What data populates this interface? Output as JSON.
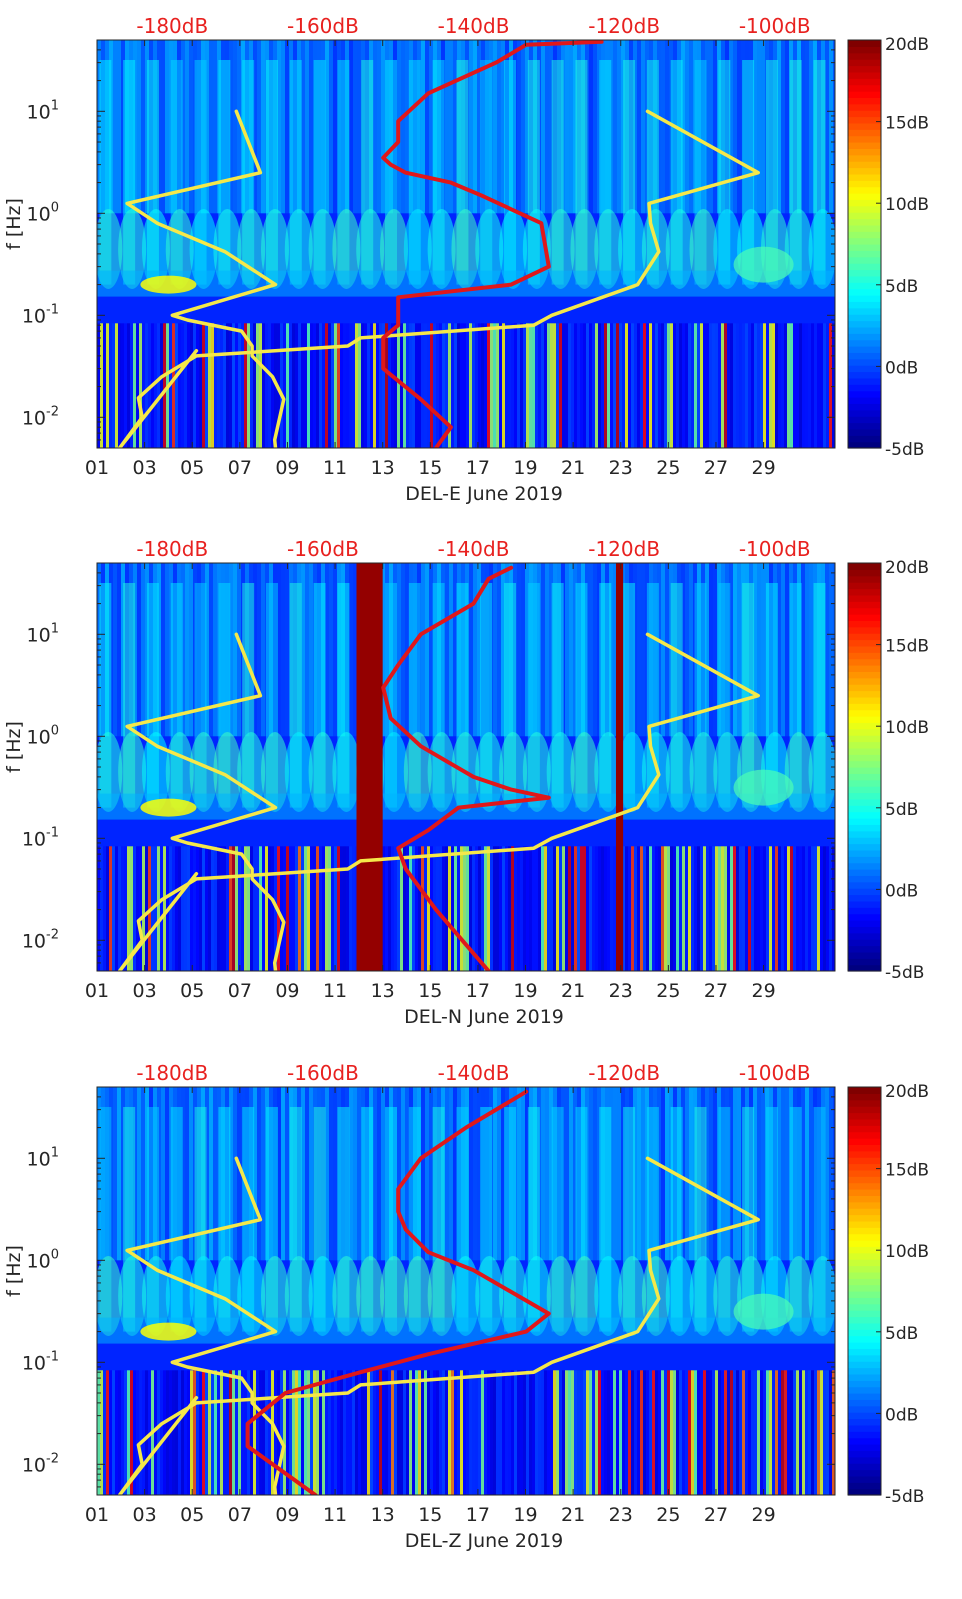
{
  "figure": {
    "colors": {
      "top_axis_text": "#e8211f",
      "text": "#262626",
      "noise_model_line": "#f5e84a",
      "spectrum_line": "#e0171a"
    },
    "colorbar": {
      "ticks": [
        {
          "value": 20,
          "label": "20dB"
        },
        {
          "value": 15,
          "label": "15dB"
        },
        {
          "value": 10,
          "label": "10dB"
        },
        {
          "value": 5,
          "label": "5dB"
        },
        {
          "value": 0,
          "label": "0dB"
        },
        {
          "value": -5,
          "label": "-5dB"
        }
      ],
      "range": [
        -5,
        20
      ],
      "colormap": "jet"
    }
  },
  "chart_data": [
    {
      "type": "heatmap",
      "title": "",
      "xlabel": "DEL-E June 2019",
      "ylabel": "f [Hz]",
      "xlim": [
        1,
        32
      ],
      "ylim": [
        0.005,
        50
      ],
      "yscale": "log",
      "x_ticks": [
        {
          "value": 1,
          "label": "01"
        },
        {
          "value": 3,
          "label": "03"
        },
        {
          "value": 5,
          "label": "05"
        },
        {
          "value": 7,
          "label": "07"
        },
        {
          "value": 9,
          "label": "09"
        },
        {
          "value": 11,
          "label": "11"
        },
        {
          "value": 13,
          "label": "13"
        },
        {
          "value": 15,
          "label": "15"
        },
        {
          "value": 17,
          "label": "17"
        },
        {
          "value": 19,
          "label": "19"
        },
        {
          "value": 21,
          "label": "21"
        },
        {
          "value": 23,
          "label": "23"
        },
        {
          "value": 25,
          "label": "25"
        },
        {
          "value": 27,
          "label": "27"
        },
        {
          "value": 29,
          "label": "29"
        }
      ],
      "y_ticks": [
        {
          "value": 0.01,
          "base": "10",
          "exp": "-2"
        },
        {
          "value": 0.1,
          "base": "10",
          "exp": "-1"
        },
        {
          "value": 1,
          "base": "10",
          "exp": "0"
        },
        {
          "value": 10,
          "base": "10",
          "exp": "1"
        }
      ],
      "top_axis": {
        "xlim": [
          -190,
          -92
        ],
        "ticks": [
          {
            "value": -180,
            "label": "-180dB"
          },
          {
            "value": -160,
            "label": "-160dB"
          },
          {
            "value": -140,
            "label": "-140dB"
          },
          {
            "value": -120,
            "label": "-120dB"
          },
          {
            "value": -100,
            "label": "-100dB"
          }
        ]
      },
      "hot_columns": [],
      "series": [
        {
          "name": "noise model low",
          "color": "#f5e84a",
          "db": [
            -171.5,
            -168.3,
            -186,
            -182,
            -173,
            -166.3,
            -180,
            -178,
            -170.8,
            -169.4,
            -169.4,
            -166.7,
            -165.2,
            -166.4,
            -166.3
          ],
          "f": [
            10,
            2.5,
            1.25,
            0.8,
            0.42,
            0.2,
            0.1,
            0.09,
            0.07,
            0.05,
            0.04,
            0.025,
            0.015,
            0.006,
            0.005
          ]
        },
        {
          "name": "noise model high",
          "color": "#f5e84a",
          "db": [
            -116.9,
            -102.2,
            -116.7,
            -116.5,
            -115.4,
            -118.2,
            -129.6,
            -132,
            -155,
            -156.7,
            -176.8,
            -181.4,
            -184.5,
            -184,
            -187,
            -176.8
          ],
          "f": [
            10,
            2.5,
            1.25,
            0.8,
            0.42,
            0.2,
            0.1,
            0.08,
            0.06,
            0.05,
            0.04,
            0.025,
            0.0155,
            0.01,
            0.005,
            0.045
          ]
        },
        {
          "name": "station spectrum",
          "color": "#e0171a",
          "db": [
            -123,
            -133,
            -137,
            -146,
            -150,
            -150,
            -152,
            -151,
            -149,
            -143,
            -139,
            -131,
            -130,
            -135,
            -150,
            -150,
            -150,
            -152,
            -152,
            -147,
            -143,
            -145
          ],
          "f": [
            48,
            45,
            30,
            15,
            8,
            5,
            3.5,
            3,
            2.5,
            2,
            1.5,
            0.8,
            0.3,
            0.2,
            0.15,
            0.1,
            0.08,
            0.06,
            0.03,
            0.015,
            0.008,
            0.005
          ]
        }
      ]
    },
    {
      "type": "heatmap",
      "title": "",
      "xlabel": "DEL-N June 2019",
      "ylabel": "f [Hz]",
      "xlim": [
        1,
        32
      ],
      "ylim": [
        0.005,
        50
      ],
      "yscale": "log",
      "x_ticks": [
        {
          "value": 1,
          "label": "01"
        },
        {
          "value": 3,
          "label": "03"
        },
        {
          "value": 5,
          "label": "05"
        },
        {
          "value": 7,
          "label": "07"
        },
        {
          "value": 9,
          "label": "09"
        },
        {
          "value": 11,
          "label": "11"
        },
        {
          "value": 13,
          "label": "13"
        },
        {
          "value": 15,
          "label": "15"
        },
        {
          "value": 17,
          "label": "17"
        },
        {
          "value": 19,
          "label": "19"
        },
        {
          "value": 21,
          "label": "21"
        },
        {
          "value": 23,
          "label": "23"
        },
        {
          "value": 25,
          "label": "25"
        },
        {
          "value": 27,
          "label": "27"
        },
        {
          "value": 29,
          "label": "29"
        }
      ],
      "y_ticks": [
        {
          "value": 0.01,
          "base": "10",
          "exp": "-2"
        },
        {
          "value": 0.1,
          "base": "10",
          "exp": "-1"
        },
        {
          "value": 1,
          "base": "10",
          "exp": "0"
        },
        {
          "value": 10,
          "base": "10",
          "exp": "1"
        }
      ],
      "top_axis": {
        "xlim": [
          -190,
          -92
        ],
        "ticks": [
          {
            "value": -180,
            "label": "-180dB"
          },
          {
            "value": -160,
            "label": "-160dB"
          },
          {
            "value": -140,
            "label": "-140dB"
          },
          {
            "value": -120,
            "label": "-120dB"
          },
          {
            "value": -100,
            "label": "-100dB"
          }
        ]
      },
      "hot_columns": [
        [
          11.9,
          13.0
        ],
        [
          22.8,
          23.1
        ]
      ],
      "series": [
        {
          "name": "noise model low",
          "color": "#f5e84a",
          "db": [
            -171.5,
            -168.3,
            -186,
            -182,
            -173,
            -166.3,
            -180,
            -178,
            -170.8,
            -169.4,
            -169.4,
            -166.7,
            -165.2,
            -166.4,
            -166.3
          ],
          "f": [
            10,
            2.5,
            1.25,
            0.8,
            0.42,
            0.2,
            0.1,
            0.09,
            0.07,
            0.05,
            0.04,
            0.025,
            0.015,
            0.006,
            0.005
          ]
        },
        {
          "name": "noise model high",
          "color": "#f5e84a",
          "db": [
            -116.9,
            -102.2,
            -116.7,
            -116.5,
            -115.4,
            -118.2,
            -129.6,
            -132,
            -155,
            -156.7,
            -176.8,
            -181.4,
            -184.5,
            -184,
            -187,
            -176.8
          ],
          "f": [
            10,
            2.5,
            1.25,
            0.8,
            0.42,
            0.2,
            0.1,
            0.08,
            0.06,
            0.05,
            0.04,
            0.025,
            0.0155,
            0.01,
            0.005,
            0.045
          ]
        },
        {
          "name": "station spectrum",
          "color": "#e0171a",
          "db": [
            -135,
            -138,
            -140,
            -147,
            -150,
            -152,
            -151,
            -147,
            -140,
            -135,
            -130,
            -142,
            -146,
            -150,
            -149,
            -145,
            -138
          ],
          "f": [
            45,
            35,
            20,
            10,
            5,
            3,
            1.5,
            0.8,
            0.4,
            0.3,
            0.25,
            0.2,
            0.12,
            0.08,
            0.05,
            0.02,
            0.005
          ]
        }
      ]
    },
    {
      "type": "heatmap",
      "title": "",
      "xlabel": "DEL-Z June 2019",
      "ylabel": "f [Hz]",
      "xlim": [
        1,
        32
      ],
      "ylim": [
        0.005,
        50
      ],
      "yscale": "log",
      "x_ticks": [
        {
          "value": 1,
          "label": "01"
        },
        {
          "value": 3,
          "label": "03"
        },
        {
          "value": 5,
          "label": "05"
        },
        {
          "value": 7,
          "label": "07"
        },
        {
          "value": 9,
          "label": "09"
        },
        {
          "value": 11,
          "label": "11"
        },
        {
          "value": 13,
          "label": "13"
        },
        {
          "value": 15,
          "label": "15"
        },
        {
          "value": 17,
          "label": "17"
        },
        {
          "value": 19,
          "label": "19"
        },
        {
          "value": 21,
          "label": "21"
        },
        {
          "value": 23,
          "label": "23"
        },
        {
          "value": 25,
          "label": "25"
        },
        {
          "value": 27,
          "label": "27"
        },
        {
          "value": 29,
          "label": "29"
        }
      ],
      "y_ticks": [
        {
          "value": 0.01,
          "base": "10",
          "exp": "-2"
        },
        {
          "value": 0.1,
          "base": "10",
          "exp": "-1"
        },
        {
          "value": 1,
          "base": "10",
          "exp": "0"
        },
        {
          "value": 10,
          "base": "10",
          "exp": "1"
        }
      ],
      "top_axis": {
        "xlim": [
          -190,
          -92
        ],
        "ticks": [
          {
            "value": -180,
            "label": "-180dB"
          },
          {
            "value": -160,
            "label": "-160dB"
          },
          {
            "value": -140,
            "label": "-140dB"
          },
          {
            "value": -120,
            "label": "-120dB"
          },
          {
            "value": -100,
            "label": "-100dB"
          }
        ]
      },
      "hot_columns": [],
      "series": [
        {
          "name": "noise model low",
          "color": "#f5e84a",
          "db": [
            -171.5,
            -168.3,
            -186,
            -182,
            -173,
            -166.3,
            -180,
            -178,
            -170.8,
            -169.4,
            -169.4,
            -166.7,
            -165.2,
            -166.4,
            -166.3
          ],
          "f": [
            10,
            2.5,
            1.25,
            0.8,
            0.42,
            0.2,
            0.1,
            0.09,
            0.07,
            0.05,
            0.04,
            0.025,
            0.015,
            0.006,
            0.005
          ]
        },
        {
          "name": "noise model high",
          "color": "#f5e84a",
          "db": [
            -116.9,
            -102.2,
            -116.7,
            -116.5,
            -115.4,
            -118.2,
            -129.6,
            -132,
            -155,
            -156.7,
            -176.8,
            -181.4,
            -184.5,
            -184,
            -187,
            -176.8
          ],
          "f": [
            10,
            2.5,
            1.25,
            0.8,
            0.42,
            0.2,
            0.1,
            0.08,
            0.06,
            0.05,
            0.04,
            0.025,
            0.0155,
            0.01,
            0.005,
            0.045
          ]
        },
        {
          "name": "station spectrum",
          "color": "#e0171a",
          "db": [
            -133,
            -137,
            -141,
            -147,
            -150,
            -150,
            -149,
            -146,
            -140,
            -130,
            -133,
            -146,
            -155,
            -165,
            -170,
            -170,
            -161
          ],
          "f": [
            45,
            30,
            20,
            10,
            5,
            3,
            2,
            1.2,
            0.8,
            0.3,
            0.2,
            0.12,
            0.08,
            0.05,
            0.025,
            0.015,
            0.005
          ]
        }
      ]
    }
  ]
}
